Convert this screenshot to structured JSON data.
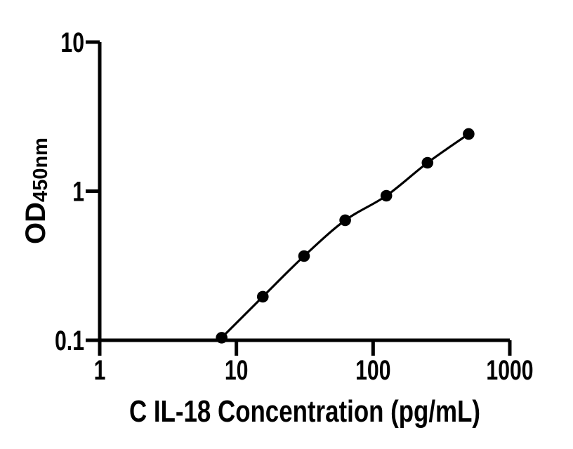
{
  "colors": {
    "foreground": "#000000",
    "background": "#ffffff"
  },
  "chart_data": {
    "type": "scatter",
    "subtype": "elisa-standard-curve",
    "title": "",
    "xlabel": "C IL-18 Concentration (pg/mL)",
    "ylabel": "OD",
    "ylabel_subscript": "450nm",
    "x_scale": "log10",
    "y_scale": "log10",
    "xlim": [
      1,
      1000
    ],
    "ylim": [
      0.1,
      10
    ],
    "x_ticks": [
      1,
      10,
      100,
      1000
    ],
    "x_tick_labels": [
      "1",
      "10",
      "100",
      "1000"
    ],
    "y_ticks": [
      10,
      1,
      0.1
    ],
    "y_tick_labels": [
      "10",
      "1",
      "0.1"
    ],
    "grid": false,
    "legend": "none",
    "marker": "filled-circle",
    "line": "smooth",
    "series": [
      {
        "name": "standard-curve",
        "x": [
          7.8,
          15.6,
          31.25,
          62.5,
          125,
          250,
          500
        ],
        "y": [
          0.104,
          0.196,
          0.367,
          0.638,
          0.932,
          1.551,
          2.419
        ]
      }
    ]
  }
}
